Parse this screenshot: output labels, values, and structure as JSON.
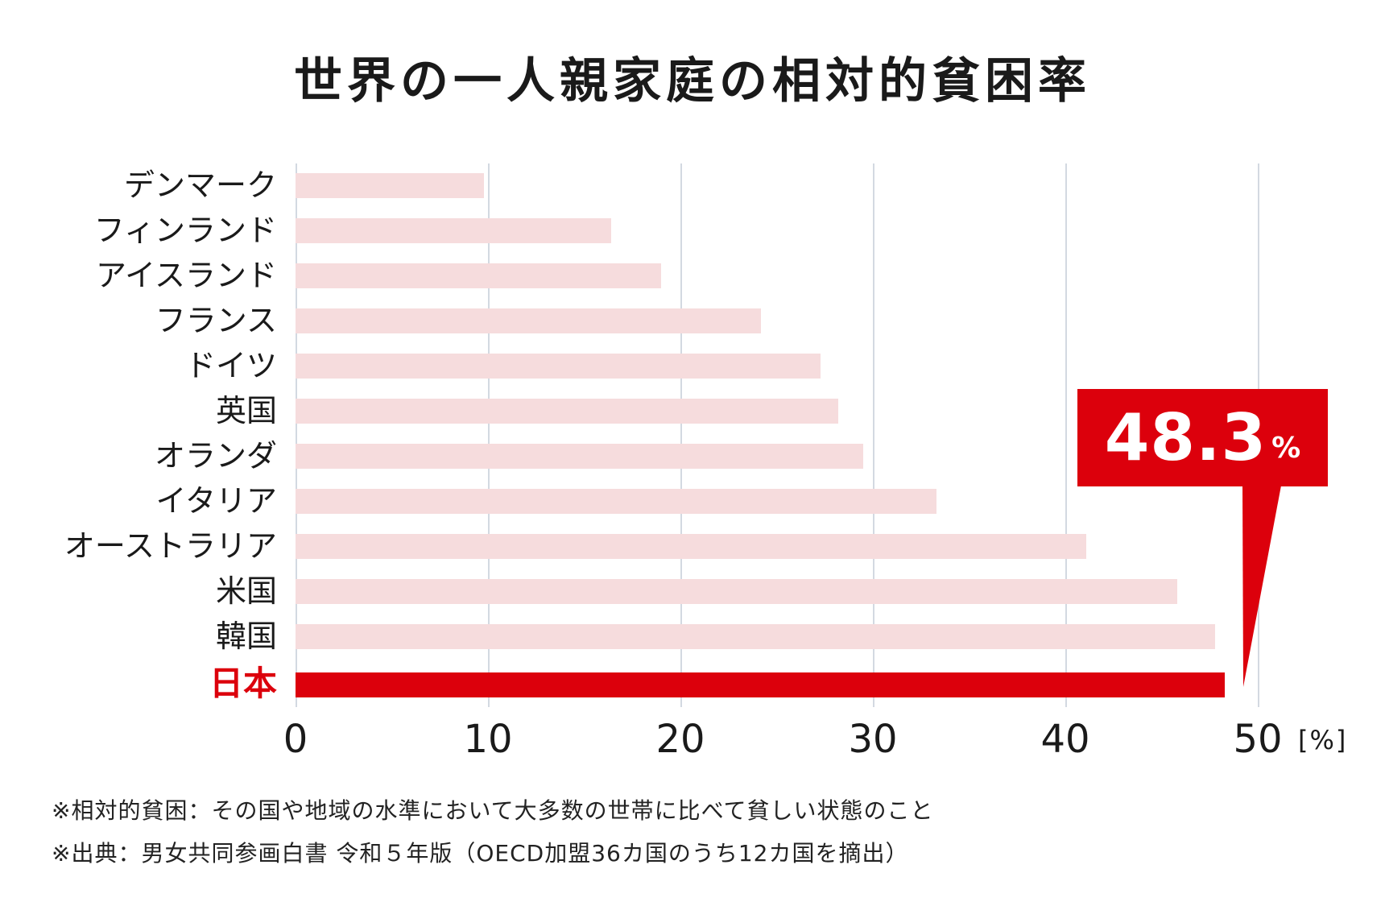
{
  "chart_data": {
    "type": "bar",
    "orientation": "horizontal",
    "title": "世界の一人親家庭の相対的貧困率",
    "categories": [
      "デンマーク",
      "フィンランド",
      "アイスランド",
      "フランス",
      "ドイツ",
      "英国",
      "オランダ",
      "イタリア",
      "オーストラリア",
      "米国",
      "韓国",
      "日本"
    ],
    "values": [
      9.8,
      16.4,
      19.0,
      24.2,
      27.3,
      28.2,
      29.5,
      33.3,
      41.1,
      45.8,
      47.8,
      48.3
    ],
    "highlight": {
      "category": "日本",
      "value": 48.3,
      "label": "48.3",
      "unit": "%"
    },
    "xlabel": "[%]",
    "ylabel": "",
    "xlim": [
      0,
      50
    ],
    "xticks": [
      "0",
      "10",
      "20",
      "30",
      "40",
      "50"
    ],
    "grid": true,
    "colors": {
      "bar": "#f6dcdd",
      "highlight": "#dc000c",
      "grid": "#d3d9e1",
      "text": "#1a1a1a"
    }
  },
  "title": "世界の一人親家庭の相対的貧困率",
  "callout": {
    "value": "48.3",
    "unit": "%"
  },
  "axis": {
    "unit": "[%]",
    "ticks": [
      "0",
      "10",
      "20",
      "30",
      "40",
      "50"
    ]
  },
  "labels": [
    "デンマーク",
    "フィンランド",
    "アイスランド",
    "フランス",
    "ドイツ",
    "英国",
    "オランダ",
    "イタリア",
    "オーストラリア",
    "米国",
    "韓国",
    "日本"
  ],
  "notes": [
    "※相対的貧困：その国や地域の水準において大多数の世帯に比べて貧しい状態のこと",
    "※出典：男女共同参画白書 令和５年版（OECD加盟36カ国のうち12カ国を摘出）"
  ]
}
